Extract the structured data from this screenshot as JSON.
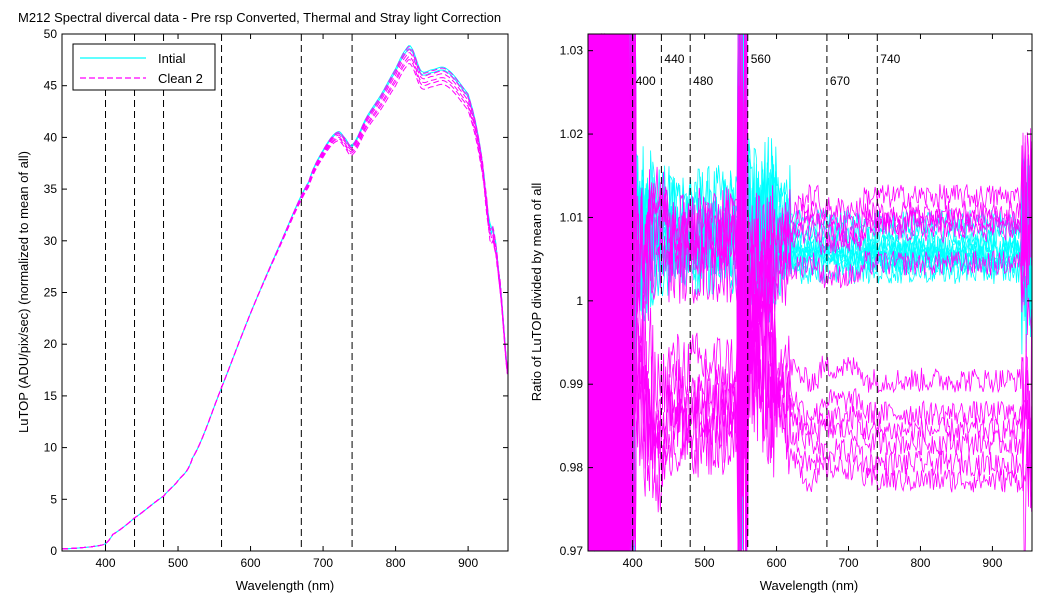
{
  "figure": {
    "title": "M212  Spectral divercal data - Pre rsp Converted, Thermal and Stray light Correction"
  },
  "chart_data": [
    {
      "type": "line",
      "xlabel": "Wavelength (nm)",
      "ylabel": "LuTOP (ADU/pix/sec) (normalized to mean of all)",
      "xlim": [
        340,
        955
      ],
      "ylim": [
        0,
        50
      ],
      "xticks": [
        400,
        500,
        600,
        700,
        800,
        900
      ],
      "yticks": [
        0,
        5,
        10,
        15,
        20,
        25,
        30,
        35,
        40,
        45,
        50
      ],
      "grid": false,
      "legend": {
        "position": "top-left",
        "entries": [
          {
            "name": "Intial",
            "color": "#00ffff",
            "style": "solid"
          },
          {
            "name": "Clean 2",
            "color": "#ff00ff",
            "style": "dashed"
          }
        ]
      },
      "vlines": [
        400,
        440,
        480,
        560,
        670,
        740
      ],
      "spectrum": {
        "x": [
          340,
          380,
          400,
          410,
          440,
          480,
          500,
          520,
          560,
          600,
          640,
          680,
          700,
          720,
          730,
          740,
          760,
          780,
          800,
          815,
          822,
          835,
          850,
          870,
          900,
          910,
          920,
          930,
          935,
          945,
          955
        ],
        "y": [
          0.2,
          0.4,
          0.7,
          1.6,
          3.2,
          5.3,
          6.8,
          9.0,
          15.8,
          23.0,
          29.5,
          35.5,
          38.5,
          40.2,
          39.6,
          38.9,
          41.5,
          43.6,
          46.0,
          47.9,
          48.0,
          45.8,
          45.9,
          46.0,
          43.6,
          41.0,
          37.0,
          31.0,
          30.5,
          25.0,
          17.0
        ]
      },
      "series": [
        {
          "name": "Intial",
          "color": "#00ffff",
          "scale": [
            1.008,
            1.014
          ]
        },
        {
          "name": "Clean 2",
          "color": "#ff00ff",
          "scale": [
            0.978,
            0.986,
            0.992,
            1.0,
            1.006,
            1.012
          ]
        }
      ]
    },
    {
      "type": "line",
      "xlabel": "Wavelength (nm)",
      "ylabel": "Ratio of LuTOP divided by mean of all",
      "xlim": [
        338,
        955
      ],
      "ylim": [
        0.97,
        1.032
      ],
      "xticks": [
        400,
        500,
        600,
        700,
        800,
        900
      ],
      "yticks": [
        0.97,
        0.98,
        0.99,
        1,
        1.01,
        1.02,
        1.03
      ],
      "ytick_labels": [
        "0.97",
        "0.98",
        "0.99",
        "1",
        "1.01",
        "1.02",
        "1.03"
      ],
      "grid": false,
      "vlines": [
        {
          "x": 400,
          "label": "400"
        },
        {
          "x": 440,
          "label": "440"
        },
        {
          "x": 480,
          "label": "480"
        },
        {
          "x": 560,
          "label": "560"
        },
        {
          "x": 670,
          "label": "670"
        },
        {
          "x": 740,
          "label": "740"
        }
      ],
      "series": [
        {
          "name": "Intial",
          "color": "#00ffff",
          "baselines": [
            1.0095,
            1.0085,
            1.007,
            1.0065,
            1.006,
            1.0055,
            1.0052,
            1.005,
            1.0045,
            1.0035
          ]
        },
        {
          "name": "Clean 2",
          "color": "#ff00ff",
          "baselines": [
            1.0125,
            1.0105,
            1.0095,
            1.0085,
            1.0045,
            0.9905,
            0.9865,
            0.9845,
            0.983,
            0.9805,
            0.9785
          ]
        }
      ]
    }
  ]
}
